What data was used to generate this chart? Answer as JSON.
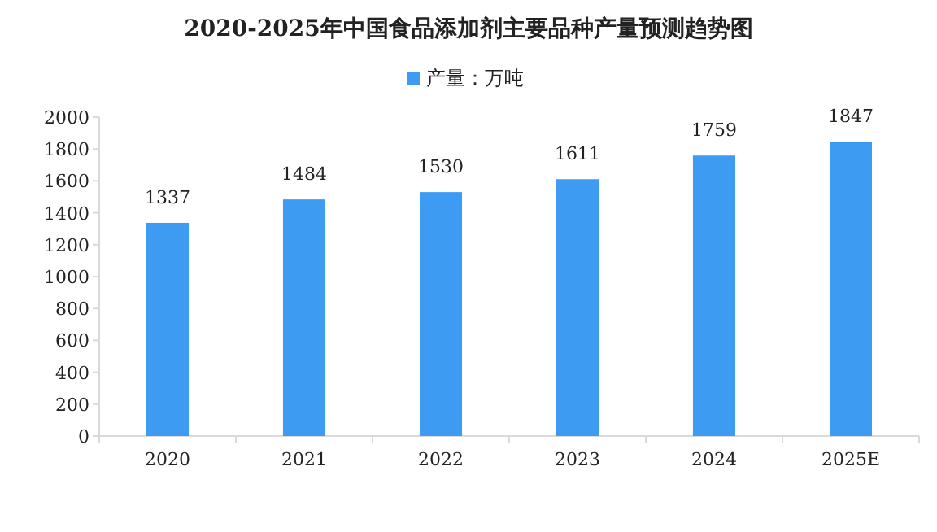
{
  "chart_data": {
    "type": "bar",
    "title": "2020-2025年中国食品添加剂主要品种产量预测趋势图",
    "categories": [
      "2020",
      "2021",
      "2022",
      "2023",
      "2024",
      "2025E"
    ],
    "series": [
      {
        "name": "产量：万吨",
        "color": "#3d9cf2",
        "values": [
          1337,
          1484,
          1530,
          1611,
          1759,
          1847
        ]
      }
    ],
    "ylim": [
      0,
      2000
    ],
    "yticks": [
      0,
      200,
      400,
      600,
      800,
      1000,
      1200,
      1400,
      1600,
      1800,
      2000
    ],
    "grid": false,
    "legend": "top",
    "data_labels": true
  }
}
